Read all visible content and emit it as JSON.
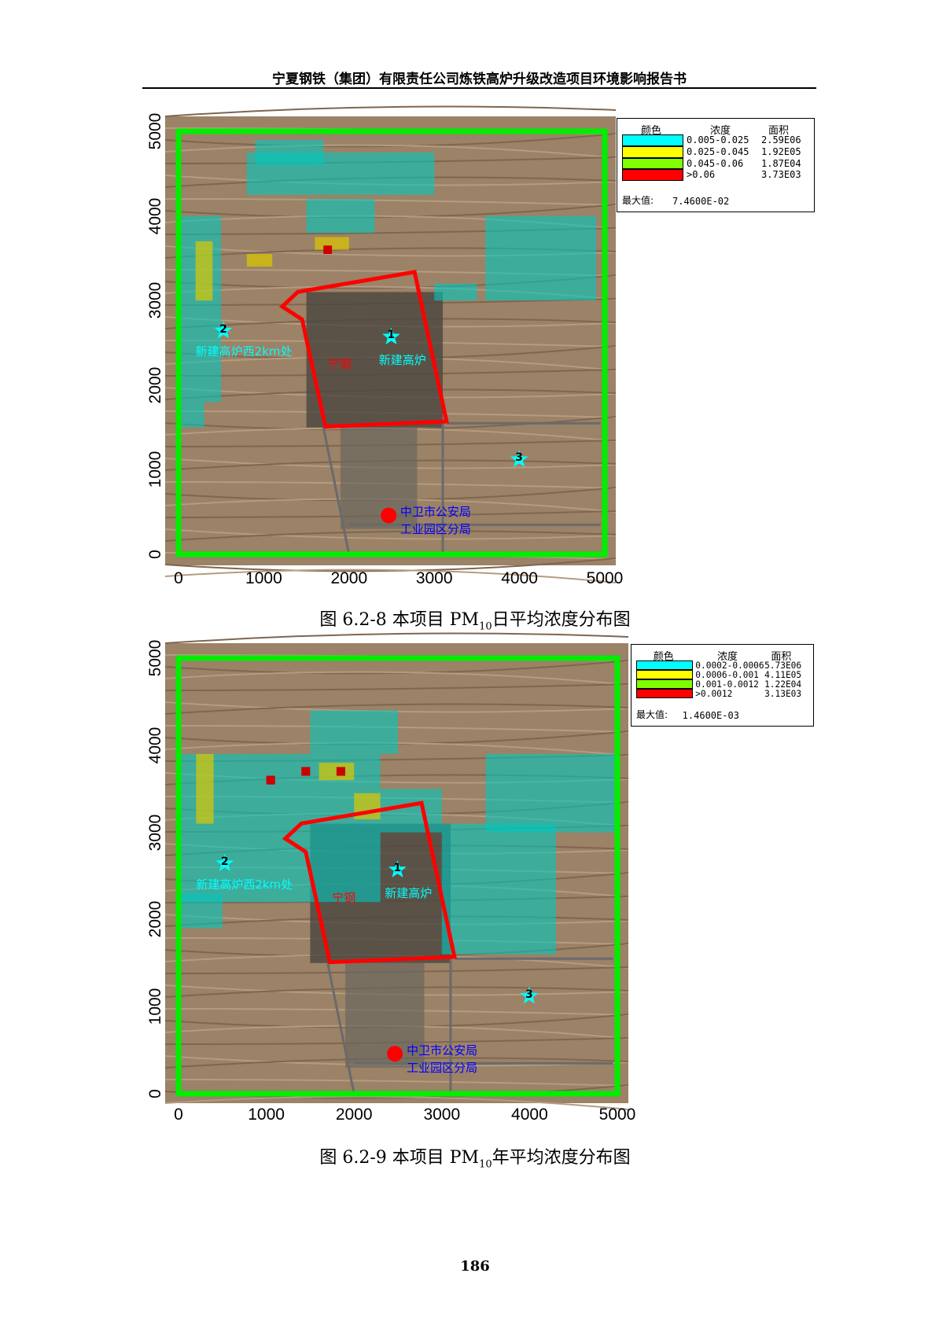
{
  "header": {
    "title": "宁夏钢铁（集团）有限责任公司炼铁高炉升级改造项目环境影响报告书"
  },
  "axis_ticks": [
    "0",
    "1000",
    "2000",
    "3000",
    "4000",
    "5000"
  ],
  "map_labels": {
    "site2": "新建高炉西2km处",
    "plant": "宁钢",
    "site1": "新建高炉",
    "police_line1": "中卫市公安局",
    "police_line2": "工业园区分局",
    "star1": "1",
    "star2": "2",
    "star3": "3"
  },
  "colors": {
    "boundary": "#00ee00",
    "plant": "#ff0000",
    "cyan": "#00ffff",
    "yellow": "#ffff00",
    "green": "#80ff00",
    "red": "#ff0000",
    "label_cyan": "#00ffff",
    "label_blue": "#0000ff"
  },
  "figures": [
    {
      "caption_prefix": "图 6.2-8  本项目 PM",
      "caption_sub": "10",
      "caption_suffix": "日平均浓度分布图",
      "legend": {
        "col_color": "颜色",
        "col_conc": "浓度",
        "col_area": "面积",
        "rows": [
          {
            "conc": "0.005-0.025",
            "area": "2.59E06",
            "color": "#00ffff"
          },
          {
            "conc": "0.025-0.045",
            "area": "1.92E05",
            "color": "#ffff00"
          },
          {
            "conc": "0.045-0.06",
            "area": "1.87E04",
            "color": "#80ff00"
          },
          {
            "conc": ">0.06",
            "area": "3.73E03",
            "color": "#ff0000"
          }
        ],
        "max_label": "最大值:",
        "max_value": "7.4600E-02"
      }
    },
    {
      "caption_prefix": "图 6.2-9  本项目 PM",
      "caption_sub": "10",
      "caption_suffix": "年平均浓度分布图",
      "legend": {
        "col_color": "颜色",
        "col_conc": "浓度",
        "col_area": "面积",
        "rows": [
          {
            "conc": "0.0002-0.0006",
            "area": "5.73E06",
            "color": "#00ffff"
          },
          {
            "conc": "0.0006-0.001",
            "area": "4.11E05",
            "color": "#ffff00"
          },
          {
            "conc": "0.001-0.0012",
            "area": "1.22E04",
            "color": "#80ff00"
          },
          {
            "conc": ">0.0012",
            "area": "3.13E03",
            "color": "#ff0000"
          }
        ],
        "max_label": "最大值:",
        "max_value": "1.4600E-03"
      }
    }
  ],
  "page_number": "186"
}
